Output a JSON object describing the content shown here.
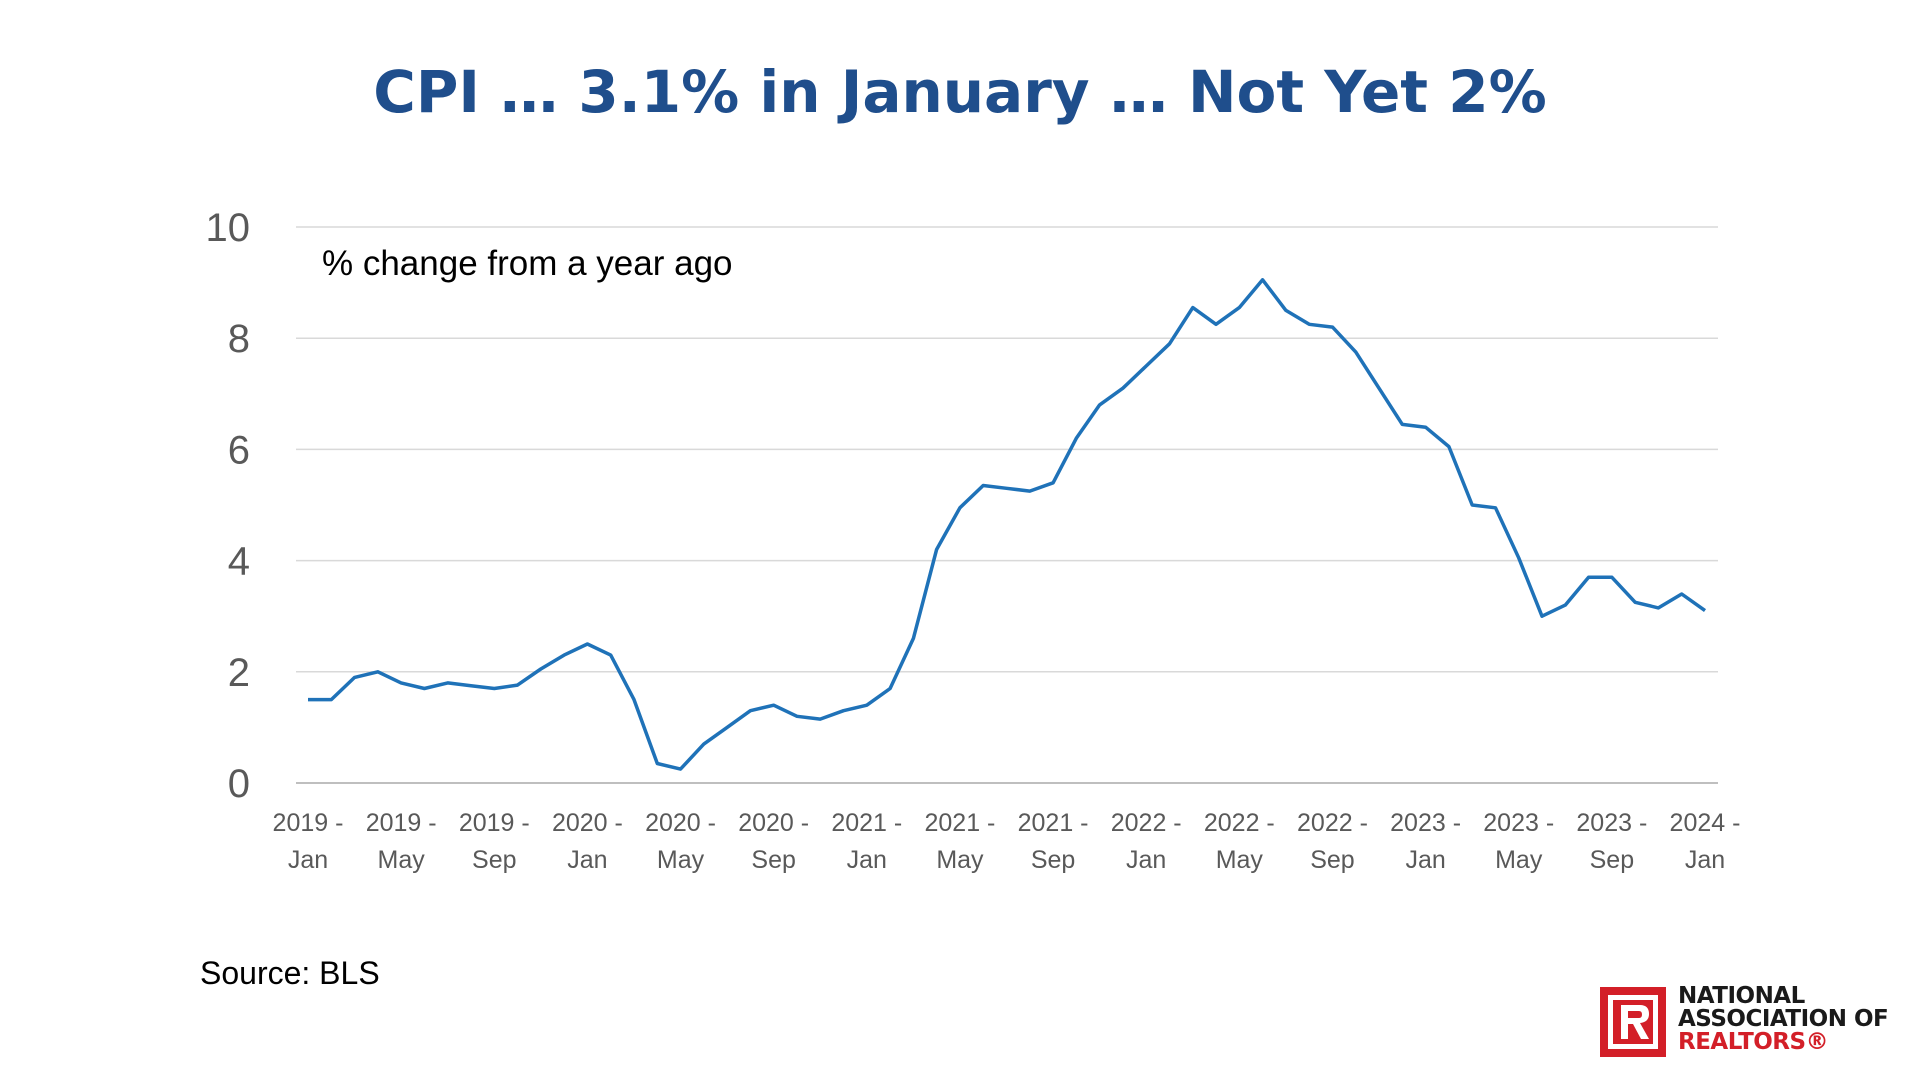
{
  "title": "CPI … 3.1% in January … Not Yet 2%",
  "source": "Source: BLS",
  "logo": {
    "lines": [
      "NATIONAL",
      "ASSOCIATION OF",
      "REALTORS®"
    ],
    "colors": {
      "red": "#d31f28",
      "dark": "#1a1a1a"
    }
  },
  "colors": {
    "title": "#1f4e8c",
    "line": "#1f72b8",
    "grid": "#d9d9d9",
    "tick": "#595959"
  },
  "chart_data": {
    "type": "line",
    "annotation": "% change from a year ago",
    "ylim": [
      0,
      10
    ],
    "yticks": [
      "0",
      "2",
      "4",
      "6",
      "8",
      "10"
    ],
    "grid": true,
    "legend": "none",
    "x_tick_labels": [
      {
        "index": 0,
        "year": "2019 -",
        "month": "Jan"
      },
      {
        "index": 4,
        "year": "2019 -",
        "month": "May"
      },
      {
        "index": 8,
        "year": "2019 -",
        "month": "Sep"
      },
      {
        "index": 12,
        "year": "2020 -",
        "month": "Jan"
      },
      {
        "index": 16,
        "year": "2020 -",
        "month": "May"
      },
      {
        "index": 20,
        "year": "2020 -",
        "month": "Sep"
      },
      {
        "index": 24,
        "year": "2021 -",
        "month": "Jan"
      },
      {
        "index": 28,
        "year": "2021 -",
        "month": "May"
      },
      {
        "index": 32,
        "year": "2021 -",
        "month": "Sep"
      },
      {
        "index": 36,
        "year": "2022 -",
        "month": "Jan"
      },
      {
        "index": 40,
        "year": "2022 -",
        "month": "May"
      },
      {
        "index": 44,
        "year": "2022 -",
        "month": "Sep"
      },
      {
        "index": 48,
        "year": "2023 -",
        "month": "Jan"
      },
      {
        "index": 52,
        "year": "2023 -",
        "month": "May"
      },
      {
        "index": 56,
        "year": "2023 -",
        "month": "Sep"
      },
      {
        "index": 60,
        "year": "2024 -",
        "month": "Jan"
      }
    ],
    "series": [
      {
        "x": [
          "2019-01",
          "2019-02",
          "2019-03",
          "2019-04",
          "2019-05",
          "2019-06",
          "2019-07",
          "2019-08",
          "2019-09",
          "2019-10",
          "2019-11",
          "2019-12",
          "2020-01",
          "2020-02",
          "2020-03",
          "2020-04",
          "2020-05",
          "2020-06",
          "2020-07",
          "2020-08",
          "2020-09",
          "2020-10",
          "2020-11",
          "2020-12",
          "2021-01",
          "2021-02",
          "2021-03",
          "2021-04",
          "2021-05",
          "2021-06",
          "2021-07",
          "2021-08",
          "2021-09",
          "2021-10",
          "2021-11",
          "2021-12",
          "2022-01",
          "2022-02",
          "2022-03",
          "2022-04",
          "2022-05",
          "2022-06",
          "2022-07",
          "2022-08",
          "2022-09",
          "2022-10",
          "2022-11",
          "2022-12",
          "2023-01",
          "2023-02",
          "2023-03",
          "2023-04",
          "2023-05",
          "2023-06",
          "2023-07",
          "2023-08",
          "2023-09",
          "2023-10",
          "2023-11",
          "2023-12",
          "2024-01"
        ],
        "values": [
          1.5,
          1.5,
          1.9,
          2.0,
          1.8,
          1.7,
          1.8,
          1.75,
          1.7,
          1.76,
          2.05,
          2.3,
          2.5,
          2.3,
          1.5,
          0.35,
          0.25,
          0.7,
          1.0,
          1.3,
          1.4,
          1.2,
          1.15,
          1.3,
          1.4,
          1.7,
          2.6,
          4.2,
          4.95,
          5.35,
          5.3,
          5.25,
          5.4,
          6.2,
          6.8,
          7.1,
          7.5,
          7.9,
          8.55,
          8.25,
          8.55,
          9.05,
          8.5,
          8.25,
          8.2,
          7.75,
          7.1,
          6.45,
          6.4,
          6.05,
          5.0,
          4.95,
          4.05,
          3.0,
          3.2,
          3.7,
          3.7,
          3.25,
          3.15,
          3.4,
          3.1
        ]
      }
    ]
  }
}
